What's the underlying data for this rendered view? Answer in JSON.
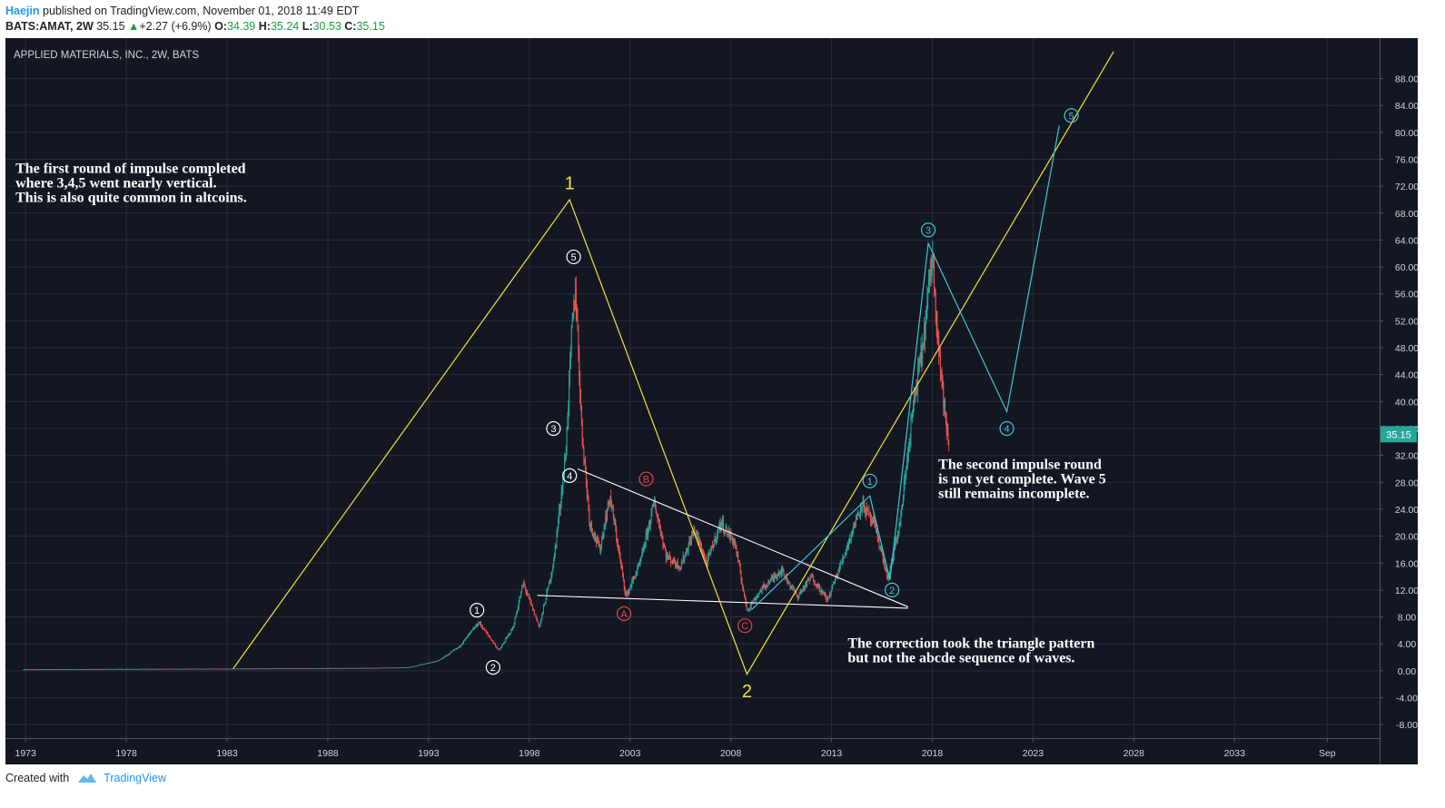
{
  "header": {
    "author": "Haejin",
    "published": "published on TradingView.com, November 01, 2018 11:49 EDT",
    "symbol": "BATS:AMAT, 2W",
    "price": "35.15",
    "change": "+2.27 (+6.9%)",
    "o_label": "O:",
    "o_value": "34.39",
    "h_label": "H:",
    "h_value": "35.24",
    "l_label": "L:",
    "l_value": "30.53",
    "c_label": "C:",
    "c_value": "35.15",
    "up_arrow_icon": "triangle-up-icon"
  },
  "footer": {
    "created": "Created with",
    "brand": "TradingView",
    "logo_icon": "tradingview-cloud-icon"
  },
  "colors": {
    "background": "#131722",
    "grid": "#2a2e39",
    "axis_text": "#d1d4dc",
    "candle_up": "#26a69a",
    "candle_down": "#ef5350",
    "yellow": "#f5e23a",
    "cyan": "#3dc7d8",
    "red_label": "#e04848",
    "white_label": "#ffffff",
    "price_badge": "#26a69a"
  },
  "chart_data": {
    "type": "candlestick",
    "title": "APPLIED MATERIALS, INC., 2W, BATS",
    "xlim": [
      1972.0,
      2040.2
    ],
    "ylim": [
      -10.0,
      94.0
    ],
    "x_ticks": [
      {
        "x": 1973,
        "label": "1973"
      },
      {
        "x": 1978,
        "label": "1978"
      },
      {
        "x": 1983,
        "label": "1983"
      },
      {
        "x": 1988,
        "label": "1988"
      },
      {
        "x": 1993,
        "label": "1993"
      },
      {
        "x": 1998,
        "label": "1998"
      },
      {
        "x": 2003,
        "label": "2003"
      },
      {
        "x": 2008,
        "label": "2008"
      },
      {
        "x": 2013,
        "label": "2013"
      },
      {
        "x": 2018,
        "label": "2018"
      },
      {
        "x": 2023,
        "label": "2023"
      },
      {
        "x": 2028,
        "label": "2028"
      },
      {
        "x": 2033,
        "label": "2033"
      },
      {
        "x": 2037.6,
        "label": "Sep"
      }
    ],
    "y_ticks": [
      {
        "y": 88,
        "label": "88.00"
      },
      {
        "y": 84,
        "label": "84.00"
      },
      {
        "y": 80,
        "label": "80.00"
      },
      {
        "y": 76,
        "label": "76.00"
      },
      {
        "y": 72,
        "label": "72.00"
      },
      {
        "y": 68,
        "label": "68.00"
      },
      {
        "y": 64,
        "label": "64.00"
      },
      {
        "y": 60,
        "label": "60.00"
      },
      {
        "y": 56,
        "label": "56.00"
      },
      {
        "y": 52,
        "label": "52.00"
      },
      {
        "y": 48,
        "label": "48.00"
      },
      {
        "y": 44,
        "label": "44.00"
      },
      {
        "y": 40,
        "label": "40.00"
      },
      {
        "y": 36,
        "label": "36.00"
      },
      {
        "y": 32,
        "label": "32.00"
      },
      {
        "y": 28,
        "label": "28.00"
      },
      {
        "y": 24,
        "label": "24.00"
      },
      {
        "y": 20,
        "label": "20.00"
      },
      {
        "y": 16,
        "label": "16.00"
      },
      {
        "y": 12,
        "label": "12.00"
      },
      {
        "y": 8,
        "label": "8.00"
      },
      {
        "y": 4,
        "label": "4.00"
      },
      {
        "y": 0,
        "label": "0.00"
      },
      {
        "y": -4,
        "label": "-4.00"
      },
      {
        "y": -8,
        "label": "-8.00"
      }
    ],
    "last_price": {
      "value": 35.15,
      "label": "35.15"
    },
    "price_path": [
      [
        1972.9,
        0.2
      ],
      [
        1983.0,
        0.3
      ],
      [
        1990.0,
        0.4
      ],
      [
        1992.0,
        0.5
      ],
      [
        1993.5,
        1.5
      ],
      [
        1994.5,
        3.5
      ],
      [
        1995.5,
        7.2
      ],
      [
        1996.5,
        3.0
      ],
      [
        1997.2,
        6.5
      ],
      [
        1997.7,
        13.0
      ],
      [
        1998.5,
        6.5
      ],
      [
        1999.2,
        16.0
      ],
      [
        1999.8,
        32.0
      ],
      [
        2000.1,
        50.0
      ],
      [
        2000.3,
        57.0
      ],
      [
        2000.6,
        36.0
      ],
      [
        2001.0,
        22.0
      ],
      [
        2001.5,
        18.0
      ],
      [
        2002.0,
        26.0
      ],
      [
        2002.8,
        11.0
      ],
      [
        2003.5,
        16.0
      ],
      [
        2004.2,
        25.0
      ],
      [
        2004.8,
        17.0
      ],
      [
        2005.5,
        15.5
      ],
      [
        2006.2,
        21.0
      ],
      [
        2006.8,
        16.0
      ],
      [
        2007.5,
        22.0
      ],
      [
        2008.2,
        19.0
      ],
      [
        2008.8,
        9.0
      ],
      [
        2009.5,
        12.0
      ],
      [
        2010.5,
        15.0
      ],
      [
        2011.3,
        11.0
      ],
      [
        2012.0,
        14.0
      ],
      [
        2012.8,
        10.5
      ],
      [
        2013.6,
        17.0
      ],
      [
        2014.5,
        25.0
      ],
      [
        2015.2,
        21.0
      ],
      [
        2015.8,
        13.5
      ],
      [
        2016.4,
        22.0
      ],
      [
        2017.0,
        38.0
      ],
      [
        2017.6,
        50.0
      ],
      [
        2018.0,
        62.0
      ],
      [
        2018.4,
        45.0
      ],
      [
        2018.8,
        33.0
      ],
      [
        2018.85,
        35.15
      ]
    ],
    "yellow_lines": [
      [
        [
          1983.3,
          0.3
        ],
        [
          2000.0,
          70.0
        ],
        [
          2008.8,
          -0.5
        ],
        [
          2027.0,
          92.0
        ]
      ]
    ],
    "cyan_lines": [
      [
        [
          2009.0,
          9.0
        ],
        [
          2014.9,
          26.0
        ],
        [
          2015.9,
          13.5
        ],
        [
          2017.8,
          63.5
        ],
        [
          2021.7,
          38.5
        ],
        [
          2024.3,
          81.0
        ]
      ]
    ],
    "white_lines": [
      [
        [
          2000.4,
          30.0
        ],
        [
          2016.8,
          9.5
        ]
      ],
      [
        [
          1998.4,
          11.2
        ],
        [
          2016.8,
          9.3
        ]
      ]
    ],
    "wave_labels": [
      {
        "x": 1995.4,
        "y": 9.0,
        "label": "1",
        "style": "circle-white"
      },
      {
        "x": 1996.2,
        "y": 0.5,
        "label": "2",
        "style": "circle-white"
      },
      {
        "x": 1999.2,
        "y": 36.0,
        "label": "3",
        "style": "circle-white"
      },
      {
        "x": 2000.0,
        "y": 29.0,
        "label": "4",
        "style": "circle-white"
      },
      {
        "x": 2000.2,
        "y": 61.5,
        "label": "5",
        "style": "circle-white"
      },
      {
        "x": 2002.7,
        "y": 8.5,
        "label": "A",
        "style": "circle-red"
      },
      {
        "x": 2003.8,
        "y": 28.5,
        "label": "B",
        "style": "circle-red"
      },
      {
        "x": 2008.7,
        "y": 6.7,
        "label": "C",
        "style": "circle-red"
      },
      {
        "x": 2014.9,
        "y": 28.2,
        "label": "1",
        "style": "circle-cyan"
      },
      {
        "x": 2016.0,
        "y": 12.0,
        "label": "2",
        "style": "circle-cyan"
      },
      {
        "x": 2017.8,
        "y": 65.5,
        "label": "3",
        "style": "circle-cyan"
      },
      {
        "x": 2021.7,
        "y": 36.0,
        "label": "4",
        "style": "circle-cyan"
      },
      {
        "x": 2024.9,
        "y": 82.5,
        "label": "5",
        "style": "circle-cyan"
      },
      {
        "x": 2000.0,
        "y": 72.5,
        "label": "1",
        "style": "plain-yellow"
      },
      {
        "x": 2008.8,
        "y": -3.0,
        "label": "2",
        "style": "plain-yellow"
      }
    ],
    "annotations": [
      {
        "x": 1972.5,
        "y": 74.0,
        "lines": [
          "The first round of impulse completed",
          "where 3,4,5 went nearly vertical.",
          "This is also quite common in altcoins."
        ]
      },
      {
        "x": 2018.3,
        "y": 30.0,
        "lines": [
          "The second impulse round",
          "is not yet complete. Wave 5",
          "still remains incomplete."
        ]
      },
      {
        "x": 2013.8,
        "y": 3.4,
        "lines": [
          "The correction took the triangle pattern",
          "but not the abcde sequence of waves."
        ]
      }
    ]
  }
}
